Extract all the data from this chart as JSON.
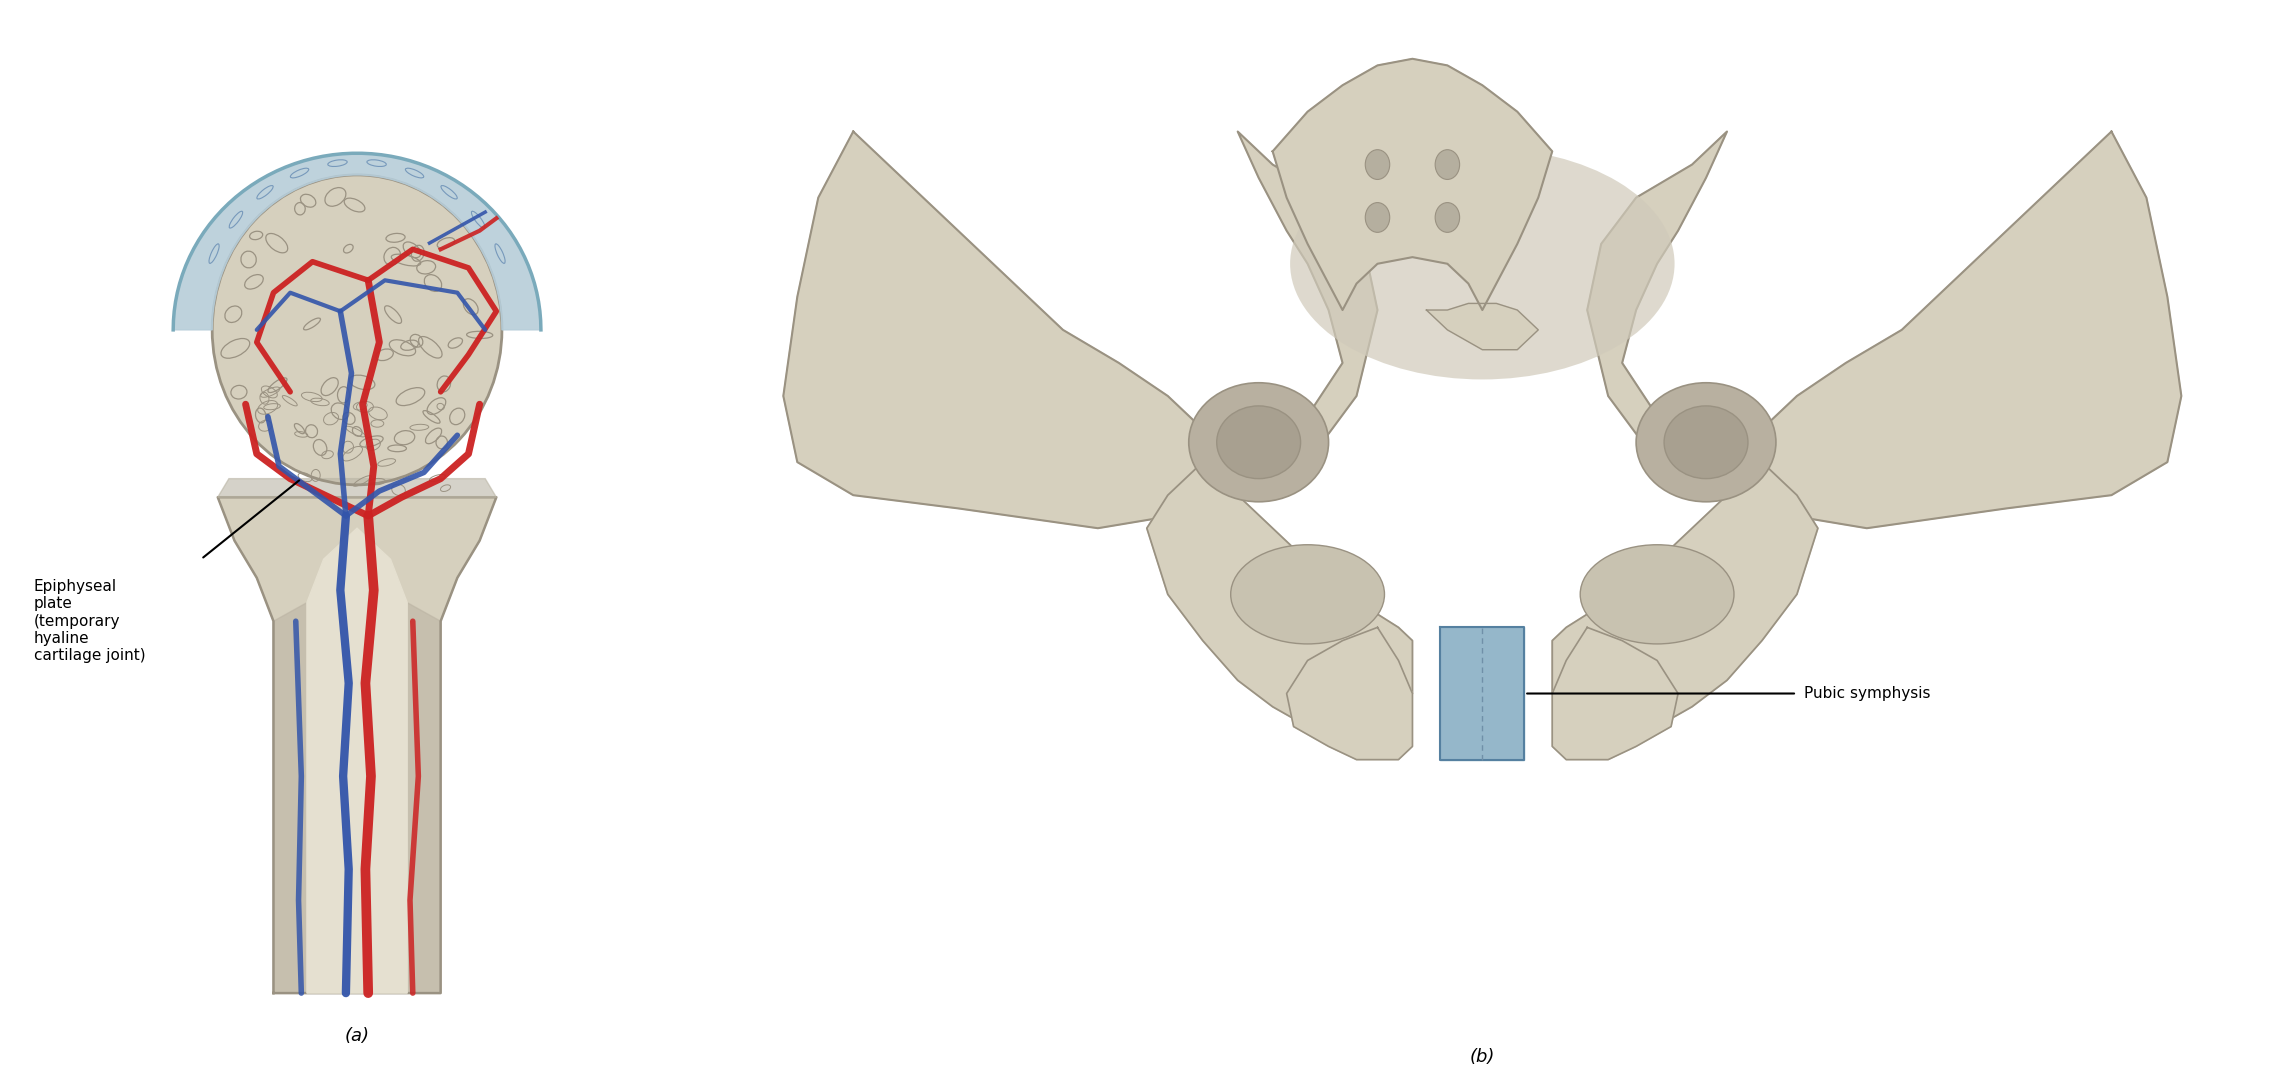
{
  "background_color": "#ffffff",
  "fig_width": 22.74,
  "fig_height": 10.78,
  "label_a": "(a)",
  "label_b": "(b)",
  "annotation_epiphyseal": "Epiphyseal\nplate\n(temporary\nhyaline\ncartilage joint)",
  "annotation_pubic": "Pubic symphysis",
  "label_fontsize": 13,
  "annotation_fontsize": 11,
  "bone_color": "#d6d0be",
  "bone_color2": "#ccc6b2",
  "bone_outline": "#9a9282",
  "bone_shadow": "#b8b0a0",
  "cartilage_color": "#b5ccd8",
  "cartilage_outline": "#7aaabb",
  "artery_color": "#cc2222",
  "vein_color": "#3355aa",
  "pubic_fibro_color": "#8ab0c5",
  "medullary_color": "#e5e0d0",
  "inner_shadow": "#c8c0ae"
}
